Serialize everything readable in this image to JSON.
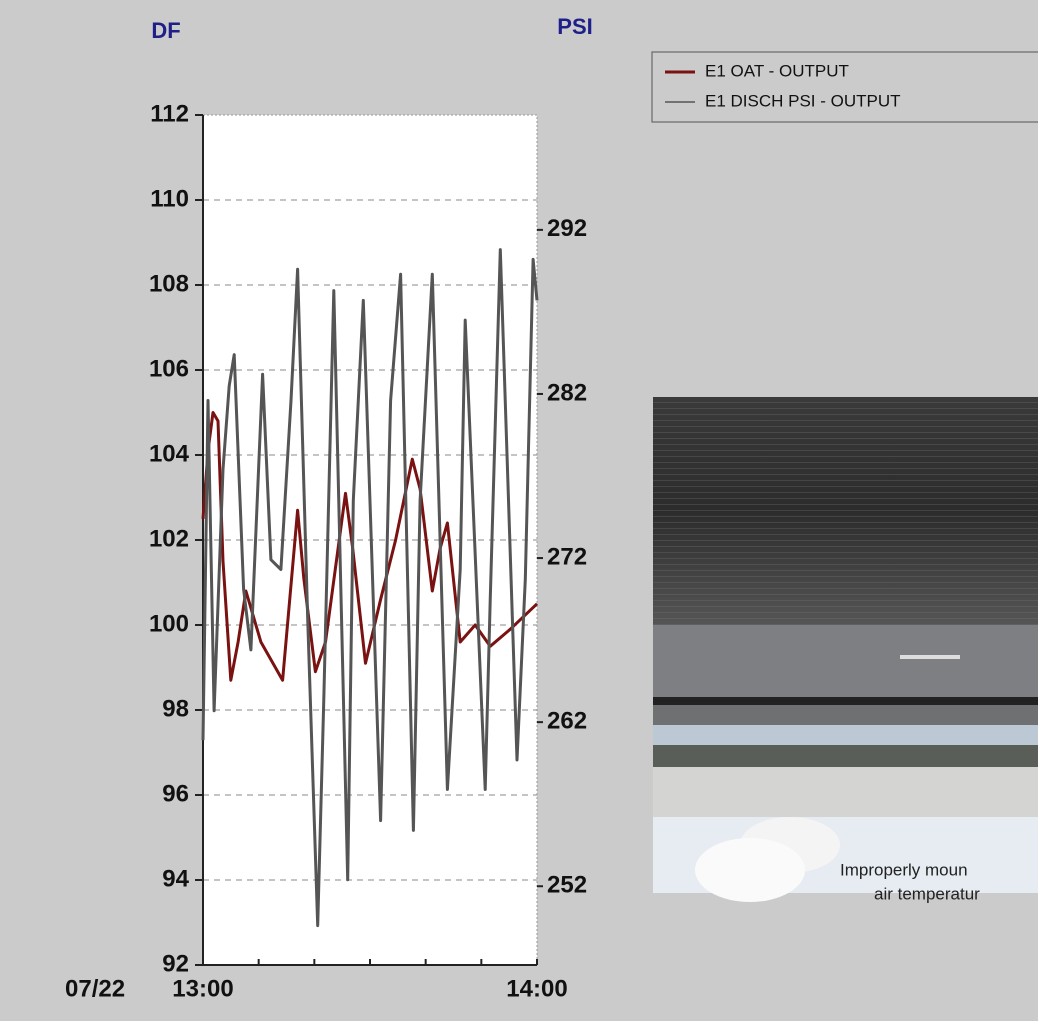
{
  "chart_data": {
    "type": "line",
    "y_axis_title": "DF",
    "y2_axis_title": "PSI",
    "date_label": "07/22",
    "xlim": [
      0,
      60
    ],
    "xticks": [
      {
        "value": 0,
        "label": "13:00"
      },
      {
        "value": 60,
        "label": "14:00"
      }
    ],
    "xminorticks": [
      10,
      20,
      30,
      40,
      50
    ],
    "ylim": [
      92,
      112
    ],
    "yticks": [
      92,
      94,
      96,
      98,
      100,
      102,
      104,
      106,
      108,
      110,
      112
    ],
    "y2lim": [
      247.2,
      299
    ],
    "y2ticks": [
      252,
      262,
      272,
      282,
      292
    ],
    "grid": true,
    "legend": "top-right",
    "series": [
      {
        "name": "E1 OAT - OUTPUT",
        "color": "#7a1212",
        "x": [
          0,
          0.9,
          1.8,
          2.7,
          3.6,
          5.0,
          6.3,
          7.7,
          10.4,
          14.3,
          17.0,
          18.1,
          20.2,
          22.0,
          25.6,
          26.9,
          29.2,
          31.9,
          34.6,
          37.6,
          39.0,
          41.2,
          42.6,
          43.9,
          46.2,
          48.9,
          51.6,
          55.2,
          60
        ],
        "values": [
          102.5,
          104.1,
          105.0,
          104.8,
          101.5,
          98.7,
          99.6,
          100.8,
          99.6,
          98.7,
          102.7,
          101.1,
          98.9,
          99.6,
          103.1,
          101.8,
          99.1,
          100.6,
          102.0,
          103.9,
          103.2,
          100.8,
          101.8,
          102.4,
          99.6,
          100.0,
          99.5,
          99.9,
          100.5
        ]
      },
      {
        "name": "E1 DISCH PSI - OUTPUT",
        "color": "#555555",
        "axis": "y2",
        "x": [
          0,
          0.9,
          2.0,
          3.6,
          4.7,
          5.6,
          7.3,
          8.6,
          10.7,
          12.2,
          14.0,
          15.8,
          17.0,
          18.8,
          20.6,
          21.7,
          23.5,
          26.0,
          27.0,
          28.8,
          31.9,
          33.7,
          35.5,
          37.8,
          39.0,
          41.2,
          43.9,
          46.2,
          47.1,
          50.7,
          51.6,
          53.4,
          56.4,
          57.9,
          59.3,
          60
        ],
        "values": [
          260.9,
          281.6,
          262.7,
          277.4,
          282.5,
          284.4,
          270.1,
          266.4,
          283.2,
          271.9,
          271.3,
          281.6,
          289.6,
          268.3,
          249.6,
          263.4,
          288.3,
          252.4,
          275.5,
          287.7,
          256.0,
          281.6,
          289.3,
          255.4,
          275.5,
          289.3,
          257.9,
          271.3,
          286.5,
          257.9,
          269.4,
          290.8,
          259.7,
          270.7,
          290.2,
          287.7
        ]
      }
    ]
  },
  "photo_caption": [
    "Improperly moun",
    "air temperatur"
  ]
}
